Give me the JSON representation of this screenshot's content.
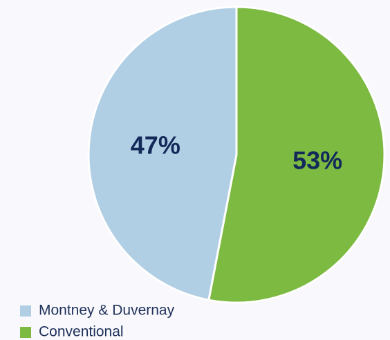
{
  "chart_data": {
    "type": "pie",
    "categories": [
      "Montney & Duvernay",
      "Conventional"
    ],
    "values": [
      47,
      53
    ],
    "value_labels": [
      "47%",
      "53%"
    ],
    "colors": [
      "#b1cfe4",
      "#7dba42"
    ]
  }
}
